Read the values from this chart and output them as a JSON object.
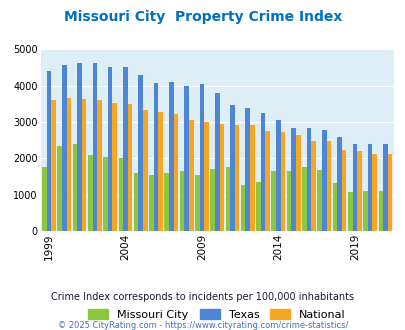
{
  "title": "Missouri City  Property Crime Index",
  "subtitle": "Crime Index corresponds to incidents per 100,000 inhabitants",
  "footer": "© 2025 CityRating.com - https://www.cityrating.com/crime-statistics/",
  "years": [
    1999,
    2000,
    2001,
    2002,
    2003,
    2004,
    2005,
    2006,
    2007,
    2008,
    2009,
    2010,
    2011,
    2012,
    2013,
    2014,
    2015,
    2016,
    2017,
    2018,
    2019,
    2020,
    2021
  ],
  "missouri_city": [
    1750,
    2350,
    2400,
    2100,
    2050,
    2000,
    1600,
    1530,
    1600,
    1660,
    1550,
    1700,
    1750,
    1260,
    1340,
    1650,
    1660,
    1750,
    1680,
    1320,
    1080,
    1090,
    1090
  ],
  "texas": [
    4400,
    4580,
    4620,
    4620,
    4520,
    4520,
    4300,
    4090,
    4100,
    4000,
    4050,
    3800,
    3470,
    3380,
    3260,
    3050,
    2840,
    2830,
    2790,
    2600,
    2400,
    2390,
    2400
  ],
  "national": [
    3600,
    3670,
    3650,
    3600,
    3520,
    3490,
    3340,
    3280,
    3230,
    3050,
    3010,
    2960,
    2930,
    2910,
    2760,
    2730,
    2650,
    2480,
    2470,
    2220,
    2200,
    2130,
    2130
  ],
  "missouri_city_color": "#8dc63f",
  "texas_color": "#4e86d4",
  "national_color": "#f5a623",
  "plot_bg": "#ddeef6",
  "title_color": "#0070c0",
  "subtitle_color": "#1a1a2e",
  "footer_color": "#4472c4",
  "ylim": [
    0,
    5000
  ],
  "yticks": [
    0,
    1000,
    2000,
    3000,
    4000,
    5000
  ],
  "xtick_labels": [
    "1999",
    "2004",
    "2009",
    "2014",
    "2019"
  ],
  "xtick_positions": [
    0,
    5,
    10,
    15,
    20
  ]
}
